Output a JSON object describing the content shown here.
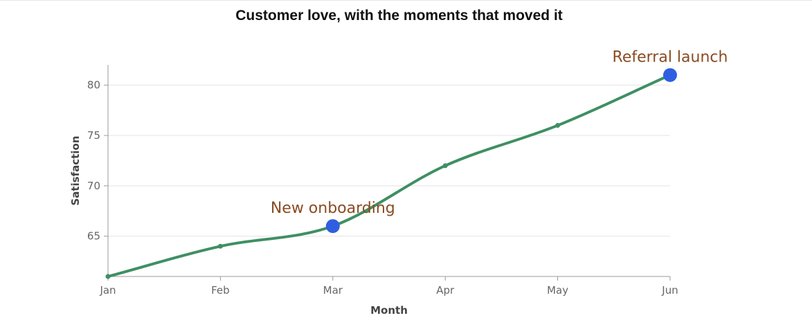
{
  "chart_data": {
    "type": "line",
    "title": "Customer love, with the moments that moved it",
    "xlabel": "Month",
    "ylabel": "Satisfaction",
    "categories": [
      "Jan",
      "Feb",
      "Mar",
      "Apr",
      "May",
      "Jun"
    ],
    "series": [
      {
        "values": [
          61,
          64,
          66,
          72,
          76,
          81
        ],
        "color": "#3f8f63"
      }
    ],
    "yticks": [
      65,
      70,
      75,
      80
    ],
    "ylim": [
      61,
      82
    ],
    "grid": "horizontal",
    "annotations": [
      {
        "x": "Mar",
        "y": 66,
        "text": "New onboarding"
      },
      {
        "x": "Jun",
        "y": 81,
        "text": "Referral launch"
      }
    ],
    "colors": {
      "line": "#3f8f63",
      "highlight": "#2f5fe0",
      "annotation_text": "#8a4b22",
      "grid": "#e3e3e3",
      "axis": "#999999"
    }
  }
}
